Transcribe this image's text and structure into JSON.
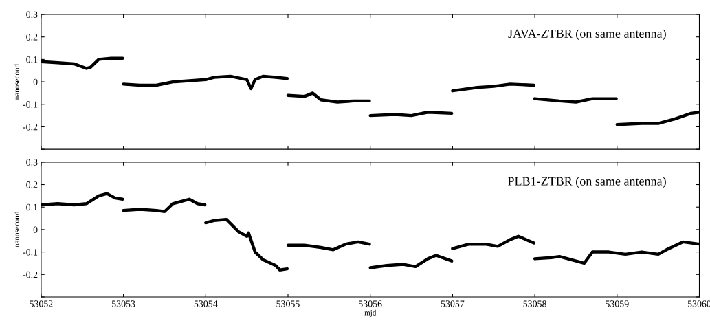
{
  "chart_data": [
    {
      "type": "line",
      "title": "JAVA-ZTBR (on same antenna)",
      "ylabel": "nanosecond",
      "xlim": [
        53052,
        53060
      ],
      "ylim": [
        -0.3,
        0.3
      ],
      "xticks": [
        53052,
        53053,
        53054,
        53055,
        53056,
        53057,
        53058,
        53059,
        53060
      ],
      "yticks": [
        {
          "value": -0.3,
          "label": null
        },
        {
          "value": -0.2,
          "label": "-0.2"
        },
        {
          "value": -0.1,
          "label": "-0.1"
        },
        0,
        0.1,
        0.2,
        0.3
      ],
      "tick_labels": "y",
      "grid": false,
      "marker": "none",
      "line_style": "solid",
      "series": [
        {
          "color": "#000000",
          "x": [
            53052.0,
            53052.2,
            53052.4,
            53052.55,
            53052.6,
            53052.7,
            53052.85,
            53052.99
          ],
          "values": [
            0.09,
            0.085,
            0.08,
            0.06,
            0.065,
            0.1,
            0.105,
            0.105
          ]
        },
        {
          "color": "#000000",
          "x": [
            53053.0,
            53053.2,
            53053.4,
            53053.6,
            53053.8,
            53054.0,
            53054.1,
            53054.3,
            53054.5,
            53054.55,
            53054.6,
            53054.7,
            53054.85,
            53054.99
          ],
          "values": [
            -0.01,
            -0.015,
            -0.015,
            0.0,
            0.005,
            0.01,
            0.02,
            0.025,
            0.01,
            -0.03,
            0.01,
            0.025,
            0.02,
            0.015
          ]
        },
        {
          "color": "#000000",
          "x": [
            53055.0,
            53055.2,
            53055.3,
            53055.4,
            53055.6,
            53055.8,
            53055.99
          ],
          "values": [
            -0.06,
            -0.065,
            -0.05,
            -0.08,
            -0.09,
            -0.085,
            -0.085
          ]
        },
        {
          "color": "#000000",
          "x": [
            53056.0,
            53056.3,
            53056.5,
            53056.7,
            53056.99
          ],
          "values": [
            -0.15,
            -0.145,
            -0.15,
            -0.135,
            -0.14
          ]
        },
        {
          "color": "#000000",
          "x": [
            53057.0,
            53057.3,
            53057.5,
            53057.7,
            53057.99
          ],
          "values": [
            -0.04,
            -0.025,
            -0.02,
            -0.01,
            -0.015
          ]
        },
        {
          "color": "#000000",
          "x": [
            53058.0,
            53058.3,
            53058.5,
            53058.7,
            53058.99
          ],
          "values": [
            -0.075,
            -0.085,
            -0.09,
            -0.075,
            -0.075
          ]
        },
        {
          "color": "#000000",
          "x": [
            53059.0,
            53059.3,
            53059.5,
            53059.7,
            53059.9,
            53060.0
          ],
          "values": [
            -0.19,
            -0.185,
            -0.185,
            -0.165,
            -0.14,
            -0.135
          ]
        }
      ]
    },
    {
      "type": "line",
      "title": "PLB1-ZTBR (on same antenna)",
      "ylabel": "nanosecond",
      "xlabel": "mjd",
      "xlim": [
        53052,
        53060
      ],
      "ylim": [
        -0.3,
        0.3
      ],
      "xticks": [
        53052,
        53053,
        53054,
        53055,
        53056,
        53057,
        53058,
        53059,
        53060
      ],
      "yticks": [
        {
          "value": -0.3,
          "label": null
        },
        {
          "value": -0.2,
          "label": "-0.2"
        },
        {
          "value": -0.1,
          "label": "-0.1"
        },
        0,
        0.1,
        0.2,
        0.3
      ],
      "grid": false,
      "marker": "none",
      "line_style": "solid",
      "series": [
        {
          "color": "#000000",
          "x": [
            53052.0,
            53052.2,
            53052.4,
            53052.55,
            53052.7,
            53052.8,
            53052.9,
            53052.99
          ],
          "values": [
            0.11,
            0.115,
            0.11,
            0.115,
            0.15,
            0.16,
            0.14,
            0.135
          ]
        },
        {
          "color": "#000000",
          "x": [
            53053.0,
            53053.2,
            53053.4,
            53053.5,
            53053.6,
            53053.8,
            53053.9,
            53053.99
          ],
          "values": [
            0.085,
            0.09,
            0.085,
            0.08,
            0.115,
            0.135,
            0.115,
            0.11
          ]
        },
        {
          "color": "#000000",
          "x": [
            53054.0,
            53054.1,
            53054.25,
            53054.4,
            53054.5,
            53054.52,
            53054.6,
            53054.7,
            53054.85,
            53054.9,
            53054.99
          ],
          "values": [
            0.03,
            0.04,
            0.045,
            -0.01,
            -0.03,
            -0.015,
            -0.1,
            -0.135,
            -0.16,
            -0.18,
            -0.175
          ]
        },
        {
          "color": "#000000",
          "x": [
            53055.0,
            53055.2,
            53055.4,
            53055.55,
            53055.7,
            53055.85,
            53055.99
          ],
          "values": [
            -0.07,
            -0.07,
            -0.08,
            -0.09,
            -0.065,
            -0.055,
            -0.065
          ]
        },
        {
          "color": "#000000",
          "x": [
            53056.0,
            53056.2,
            53056.4,
            53056.55,
            53056.7,
            53056.8,
            53056.99
          ],
          "values": [
            -0.17,
            -0.16,
            -0.155,
            -0.165,
            -0.13,
            -0.115,
            -0.14
          ]
        },
        {
          "color": "#000000",
          "x": [
            53057.0,
            53057.2,
            53057.4,
            53057.55,
            53057.7,
            53057.8,
            53057.99
          ],
          "values": [
            -0.085,
            -0.065,
            -0.065,
            -0.075,
            -0.045,
            -0.03,
            -0.06
          ]
        },
        {
          "color": "#000000",
          "x": [
            53058.0,
            53058.2,
            53058.3,
            53058.5,
            53058.6,
            53058.7,
            53058.9,
            53059.1,
            53059.3,
            53059.5,
            53059.6,
            53059.8,
            53060.0
          ],
          "values": [
            -0.13,
            -0.125,
            -0.12,
            -0.14,
            -0.15,
            -0.1,
            -0.1,
            -0.11,
            -0.1,
            -0.11,
            -0.09,
            -0.055,
            -0.065
          ]
        }
      ]
    }
  ]
}
